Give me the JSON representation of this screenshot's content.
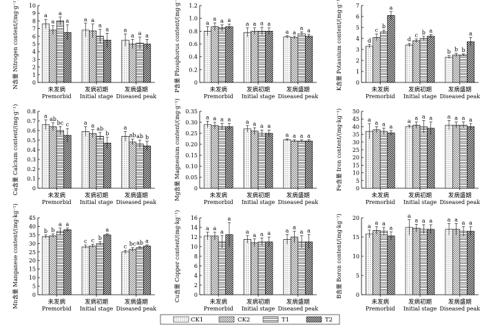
{
  "chart_data": {
    "type": "bar",
    "series_names": [
      "CK1",
      "CK2",
      "T1",
      "T2"
    ],
    "groups": [
      {
        "cn": "未发病",
        "en": "Premorbid"
      },
      {
        "cn": "发病初期",
        "en": "Initial stage"
      },
      {
        "cn": "发病盛期",
        "en": "Diseased peak"
      }
    ],
    "legend": [
      "CK1",
      "CK2",
      "T1",
      "T2"
    ],
    "panels": [
      {
        "id": "N",
        "ylabel": "N含量 Nitrogen content/(mg·g⁻¹)",
        "ylim": [
          0,
          10
        ],
        "ticks": [
          0,
          1,
          2,
          3,
          4,
          5,
          6,
          7,
          8,
          9,
          10
        ],
        "values": [
          [
            7.6,
            6.8,
            8.0,
            6.5
          ],
          [
            6.8,
            6.7,
            6.0,
            5.5
          ],
          [
            5.5,
            5.0,
            5.1,
            5.0
          ]
        ],
        "errors": [
          [
            0.6,
            0.6,
            0.5,
            1.0
          ],
          [
            0.9,
            0.9,
            0.9,
            0.9
          ],
          [
            0.8,
            0.6,
            0.8,
            0.6
          ]
        ],
        "letters": [
          [
            "a",
            "a",
            "a",
            "a"
          ],
          [
            "a",
            "a",
            "a",
            "a"
          ],
          [
            "a",
            "a",
            "a",
            "a"
          ]
        ]
      },
      {
        "id": "P",
        "ylabel": "P含量 Phosphorus content/(mg·g⁻¹)",
        "ylim": [
          0,
          1.2
        ],
        "ticks": [
          0,
          0.2,
          0.4,
          0.6,
          0.8,
          1.0,
          1.2
        ],
        "values": [
          [
            0.8,
            0.87,
            0.85,
            0.87
          ],
          [
            0.78,
            0.8,
            0.8,
            0.8
          ],
          [
            0.71,
            0.7,
            0.76,
            0.72
          ]
        ],
        "errors": [
          [
            0.07,
            0.06,
            0.05,
            0.04
          ],
          [
            0.07,
            0.05,
            0.06,
            0.05
          ],
          [
            0.02,
            0.02,
            0.03,
            0.03
          ]
        ],
        "letters": [
          [
            "a",
            "a",
            "a",
            "a"
          ],
          [
            "a",
            "a",
            "a",
            "a"
          ],
          [
            "a",
            "a",
            "a",
            "a"
          ]
        ]
      },
      {
        "id": "K",
        "ylabel": "K含量 Potassium content/(mg·g⁻¹)",
        "ylim": [
          0,
          7
        ],
        "ticks": [
          0,
          1,
          2,
          3,
          4,
          5,
          6,
          7
        ],
        "values": [
          [
            3.3,
            4.1,
            4.6,
            6.1
          ],
          [
            3.4,
            3.8,
            4.0,
            4.2
          ],
          [
            2.3,
            2.5,
            2.5,
            3.7
          ]
        ],
        "errors": [
          [
            0.15,
            0.3,
            0.15,
            0.35
          ],
          [
            0.15,
            0.15,
            0.2,
            0.15
          ],
          [
            0.15,
            0.15,
            0.1,
            0.4
          ]
        ],
        "letters": [
          [
            "d",
            "c",
            "b",
            "a"
          ],
          [
            "d",
            "c",
            "b",
            "a"
          ],
          [
            "b",
            "b",
            "b",
            "a"
          ]
        ]
      },
      {
        "id": "Ca",
        "ylabel": "Ca含量 Calcium content/(mg·g⁻¹)",
        "ylim": [
          0,
          0.8
        ],
        "ticks": [
          0,
          0.1,
          0.2,
          0.3,
          0.4,
          0.5,
          0.6,
          0.7,
          0.8
        ],
        "values": [
          [
            0.66,
            0.64,
            0.6,
            0.55
          ],
          [
            0.59,
            0.57,
            0.54,
            0.47
          ],
          [
            0.54,
            0.48,
            0.46,
            0.44
          ]
        ],
        "errors": [
          [
            0.05,
            0.04,
            0.04,
            0.07
          ],
          [
            0.05,
            0.04,
            0.04,
            0.06
          ],
          [
            0.05,
            0.03,
            0.04,
            0.05
          ]
        ],
        "letters": [
          [
            "a",
            "ab",
            "bc",
            "c"
          ],
          [
            "a",
            "a",
            "ab",
            "b"
          ],
          [
            "a",
            "ab",
            "ab",
            "b"
          ]
        ]
      },
      {
        "id": "Mg",
        "ylabel": "Mg含量 Magnesium content/(mg·g⁻¹)",
        "ylim": [
          0,
          0.35
        ],
        "ticks": [
          0,
          0.05,
          0.1,
          0.15,
          0.2,
          0.25,
          0.3,
          0.35
        ],
        "values": [
          [
            0.29,
            0.285,
            0.28,
            0.28
          ],
          [
            0.27,
            0.26,
            0.25,
            0.25
          ],
          [
            0.22,
            0.215,
            0.215,
            0.215
          ]
        ],
        "errors": [
          [
            0.015,
            0.015,
            0.015,
            0.015
          ],
          [
            0.015,
            0.015,
            0.015,
            0.015
          ],
          [
            0.005,
            0.005,
            0.005,
            0.005
          ]
        ],
        "letters": [
          [
            "a",
            "a",
            "a",
            "a"
          ],
          [
            "a",
            "a",
            "a",
            "a"
          ],
          [
            "a",
            "a",
            "a",
            "a"
          ]
        ]
      },
      {
        "id": "Fe",
        "ylabel": "Fe含量 Iron content/(mg·kg⁻¹)",
        "ylim": [
          0,
          50
        ],
        "ticks": [
          0,
          5,
          10,
          15,
          20,
          25,
          30,
          35,
          40,
          45,
          50
        ],
        "values": [
          [
            37,
            38,
            37,
            36
          ],
          [
            40,
            41,
            40,
            39
          ],
          [
            41,
            41,
            41,
            40
          ]
        ],
        "errors": [
          [
            5,
            2,
            2,
            1.5
          ],
          [
            1,
            2,
            4,
            4
          ],
          [
            3,
            2,
            2,
            2
          ]
        ],
        "letters": [
          [
            "a",
            "a",
            "a",
            "a"
          ],
          [
            "a",
            "a",
            "a",
            "a"
          ],
          [
            "a",
            "a",
            "a",
            "a"
          ]
        ]
      },
      {
        "id": "Mn",
        "ylabel": "Mn含量 Manganese content/(mg·kg⁻¹)",
        "ylim": [
          0,
          45
        ],
        "ticks": [
          0,
          5,
          10,
          15,
          20,
          25,
          30,
          35,
          40,
          45
        ],
        "values": [
          [
            34,
            34.5,
            37,
            38
          ],
          [
            28,
            28.5,
            30,
            35
          ],
          [
            25,
            26.5,
            27.5,
            28.5
          ]
        ],
        "errors": [
          [
            1,
            1,
            2,
            1
          ],
          [
            1,
            1,
            1,
            0.7
          ],
          [
            1,
            1,
            0.7,
            0.7
          ]
        ],
        "letters": [
          [
            "b",
            "b",
            "a",
            "a"
          ],
          [
            "c",
            "c",
            "b",
            "a"
          ],
          [
            "c",
            "bc",
            "ab",
            "a"
          ]
        ]
      },
      {
        "id": "Cu",
        "ylabel": "Cu含量 Copper content/(mg·kg⁻¹)",
        "ylim": [
          0,
          16
        ],
        "ticks": [
          0,
          2,
          4,
          6,
          8,
          10,
          12,
          14,
          16
        ],
        "values": [
          [
            12.2,
            12.2,
            11.0,
            12.5
          ],
          [
            11.5,
            10.8,
            11.0,
            11.0
          ],
          [
            11.5,
            12.0,
            11.0,
            11.0
          ]
        ],
        "errors": [
          [
            0.8,
            0.8,
            1.3,
            2.5
          ],
          [
            0.8,
            0.8,
            0.8,
            1.0
          ],
          [
            1.0,
            1.2,
            1.3,
            1.5
          ]
        ],
        "letters": [
          [
            "a",
            "a",
            "a",
            "a"
          ],
          [
            "a",
            "a",
            "a",
            "a"
          ],
          [
            "a",
            "a",
            "a",
            "a"
          ]
        ]
      },
      {
        "id": "B",
        "ylabel": "B含量 Boron content/(mg·kg⁻¹)",
        "ylim": [
          0,
          20
        ],
        "ticks": [
          0,
          5,
          10,
          15,
          20
        ],
        "values": [
          [
            15.8,
            16.7,
            16.5,
            15.3
          ],
          [
            17.5,
            17.3,
            17.0,
            17.0
          ],
          [
            17.0,
            17.0,
            16.5,
            16.5
          ]
        ],
        "errors": [
          [
            1,
            1,
            1,
            1
          ],
          [
            2,
            1,
            1.2,
            1.2
          ],
          [
            1.5,
            1.5,
            1.2,
            1.2
          ]
        ],
        "letters": [
          [
            "a",
            "a",
            "a",
            "a"
          ],
          [
            "a",
            "a",
            "a",
            "a"
          ],
          [
            "a",
            "a",
            "a",
            "a"
          ]
        ]
      }
    ]
  }
}
